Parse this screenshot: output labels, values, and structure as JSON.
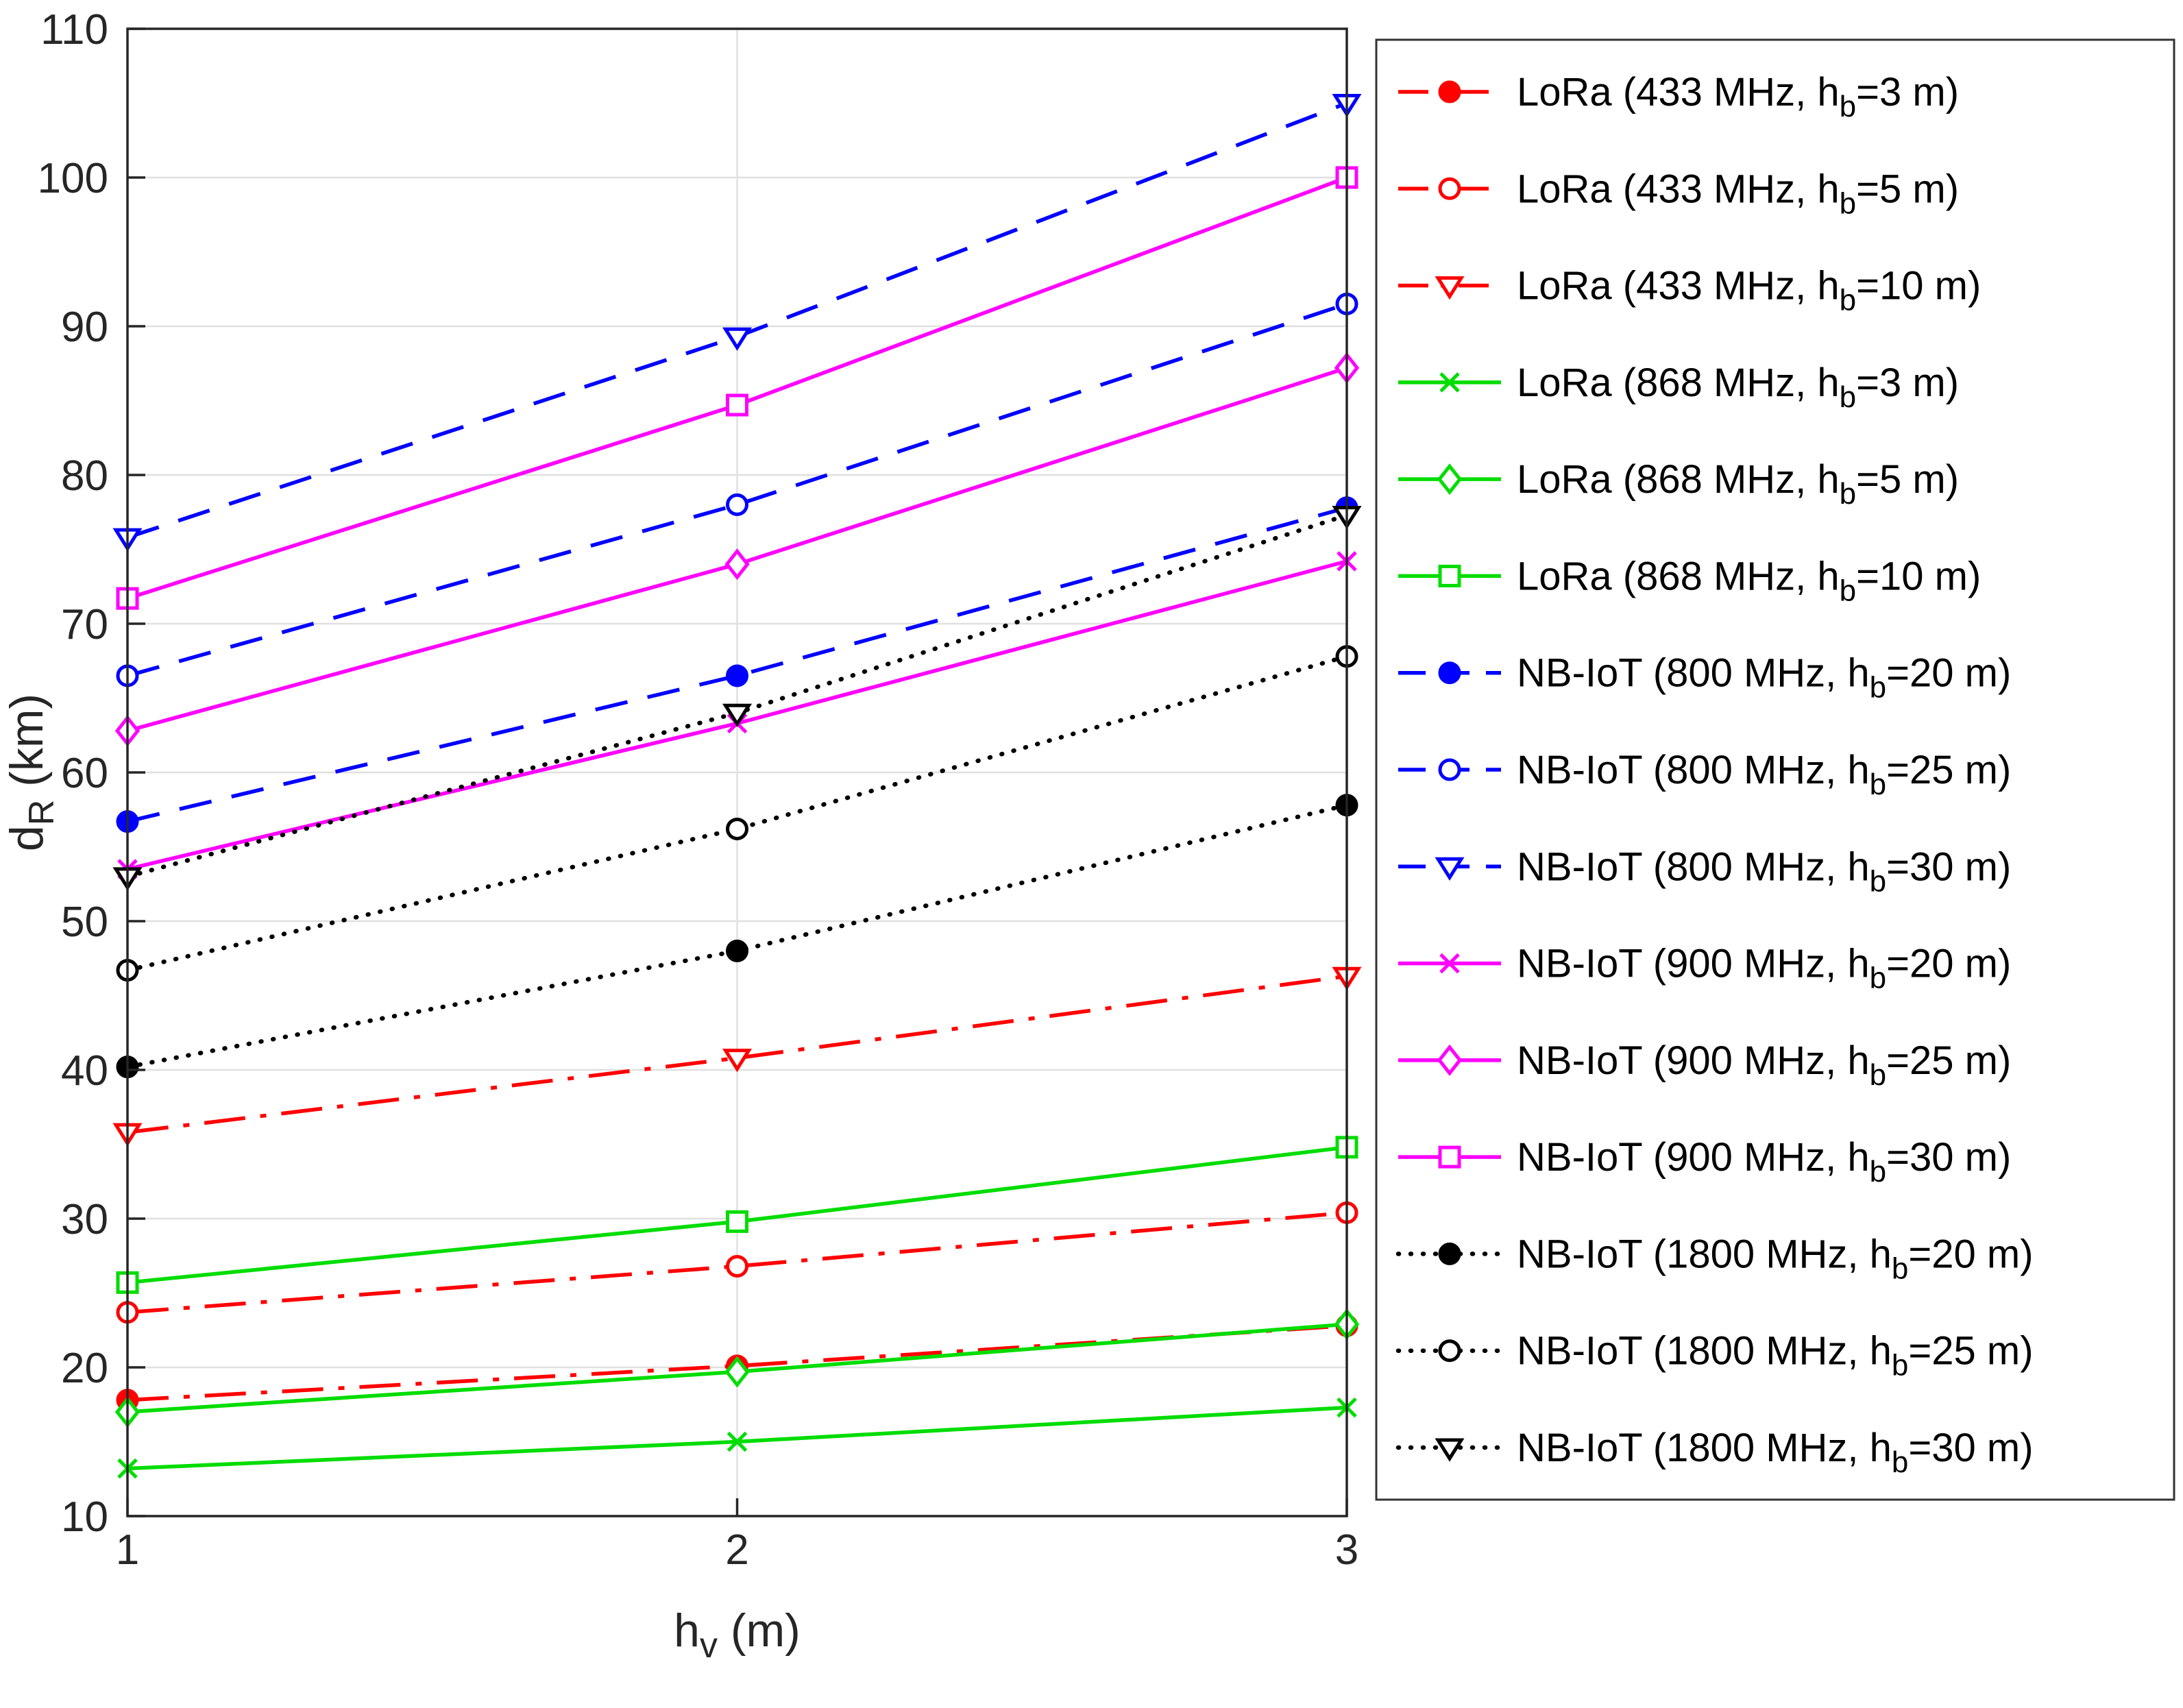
{
  "figure": {
    "background": "#ffffff",
    "axis_color": "#262626",
    "grid_color": "#e0e0e0",
    "legend_border_color": "#333333",
    "legend_background": "#ffffff"
  },
  "chart_data": {
    "type": "line",
    "title": "",
    "xlabel": {
      "pre": "h",
      "sub": "v",
      "post": " (m)"
    },
    "ylabel": {
      "pre": "d",
      "sub": "R",
      "post": " (km)"
    },
    "xlim": [
      1,
      3
    ],
    "ylim": [
      10,
      110
    ],
    "xticks": [
      1,
      2,
      3
    ],
    "yticks": [
      10,
      20,
      30,
      40,
      50,
      60,
      70,
      80,
      90,
      100,
      110
    ],
    "grid": true,
    "legend_position": "right-outside",
    "x": [
      1,
      2,
      3
    ],
    "series": [
      {
        "label": {
          "pre": "LoRa (433 MHz, h",
          "sub": "b",
          "post": "=3 m)"
        },
        "color": "#FF0000",
        "linestyle": "dashdot",
        "marker": "circle-filled",
        "values": [
          17.8,
          20.1,
          22.8
        ]
      },
      {
        "label": {
          "pre": "LoRa (433 MHz, h",
          "sub": "b",
          "post": "=5 m)"
        },
        "color": "#FF0000",
        "linestyle": "dashdot",
        "marker": "circle-open",
        "values": [
          23.7,
          26.8,
          30.4
        ]
      },
      {
        "label": {
          "pre": "LoRa (433 MHz, h",
          "sub": "b",
          "post": "=10 m)"
        },
        "color": "#FF0000",
        "linestyle": "dashdot",
        "marker": "triangle-down",
        "values": [
          35.8,
          40.8,
          46.3
        ]
      },
      {
        "label": {
          "pre": "LoRa (868 MHz, h",
          "sub": "b",
          "post": "=3 m)"
        },
        "color": "#00DD00",
        "linestyle": "solid",
        "marker": "x",
        "values": [
          13.2,
          15.0,
          17.3
        ]
      },
      {
        "label": {
          "pre": "LoRa (868 MHz, h",
          "sub": "b",
          "post": "=5 m)"
        },
        "color": "#00DD00",
        "linestyle": "solid",
        "marker": "diamond-open",
        "values": [
          17.0,
          19.7,
          22.9
        ]
      },
      {
        "label": {
          "pre": "LoRa (868 MHz, h",
          "sub": "b",
          "post": "=10 m)"
        },
        "color": "#00DD00",
        "linestyle": "solid",
        "marker": "square-open",
        "values": [
          25.7,
          29.8,
          34.8
        ]
      },
      {
        "label": {
          "pre": "NB-IoT (800 MHz, h",
          "sub": "b",
          "post": "=20 m)"
        },
        "color": "#0000FF",
        "linestyle": "dashed",
        "marker": "circle-filled",
        "values": [
          56.7,
          66.5,
          77.8
        ]
      },
      {
        "label": {
          "pre": "NB-IoT (800 MHz, h",
          "sub": "b",
          "post": "=25 m)"
        },
        "color": "#0000FF",
        "linestyle": "dashed",
        "marker": "circle-open",
        "values": [
          66.5,
          78.0,
          91.5
        ]
      },
      {
        "label": {
          "pre": "NB-IoT (800 MHz, h",
          "sub": "b",
          "post": "=30 m)"
        },
        "color": "#0000FF",
        "linestyle": "dashed",
        "marker": "triangle-down",
        "values": [
          75.8,
          89.3,
          105.0
        ]
      },
      {
        "label": {
          "pre": "NB-IoT (900 MHz, h",
          "sub": "b",
          "post": "=20 m)"
        },
        "color": "#FF00FF",
        "linestyle": "solid",
        "marker": "x",
        "values": [
          53.5,
          63.3,
          74.2
        ]
      },
      {
        "label": {
          "pre": "NB-IoT (900 MHz, h",
          "sub": "b",
          "post": "=25 m)"
        },
        "color": "#FF00FF",
        "linestyle": "solid",
        "marker": "diamond-open",
        "values": [
          62.8,
          74.0,
          87.2
        ]
      },
      {
        "label": {
          "pre": "NB-IoT (900 MHz, h",
          "sub": "b",
          "post": "=30 m)"
        },
        "color": "#FF00FF",
        "linestyle": "solid",
        "marker": "square-open",
        "values": [
          71.7,
          84.7,
          100.0
        ]
      },
      {
        "label": {
          "pre": "NB-IoT (1800 MHz, h",
          "sub": "b",
          "post": "=20 m)"
        },
        "color": "#000000",
        "linestyle": "dotted",
        "marker": "circle-filled",
        "values": [
          40.2,
          48.0,
          57.8
        ]
      },
      {
        "label": {
          "pre": "NB-IoT (1800 MHz, h",
          "sub": "b",
          "post": "=25 m)"
        },
        "color": "#000000",
        "linestyle": "dotted",
        "marker": "circle-open",
        "values": [
          46.7,
          56.2,
          67.8
        ]
      },
      {
        "label": {
          "pre": "NB-IoT (1800 MHz, h",
          "sub": "b",
          "post": "=30 m)"
        },
        "color": "#000000",
        "linestyle": "dotted",
        "marker": "triangle-down",
        "values": [
          53.0,
          64.0,
          77.3
        ]
      }
    ]
  }
}
